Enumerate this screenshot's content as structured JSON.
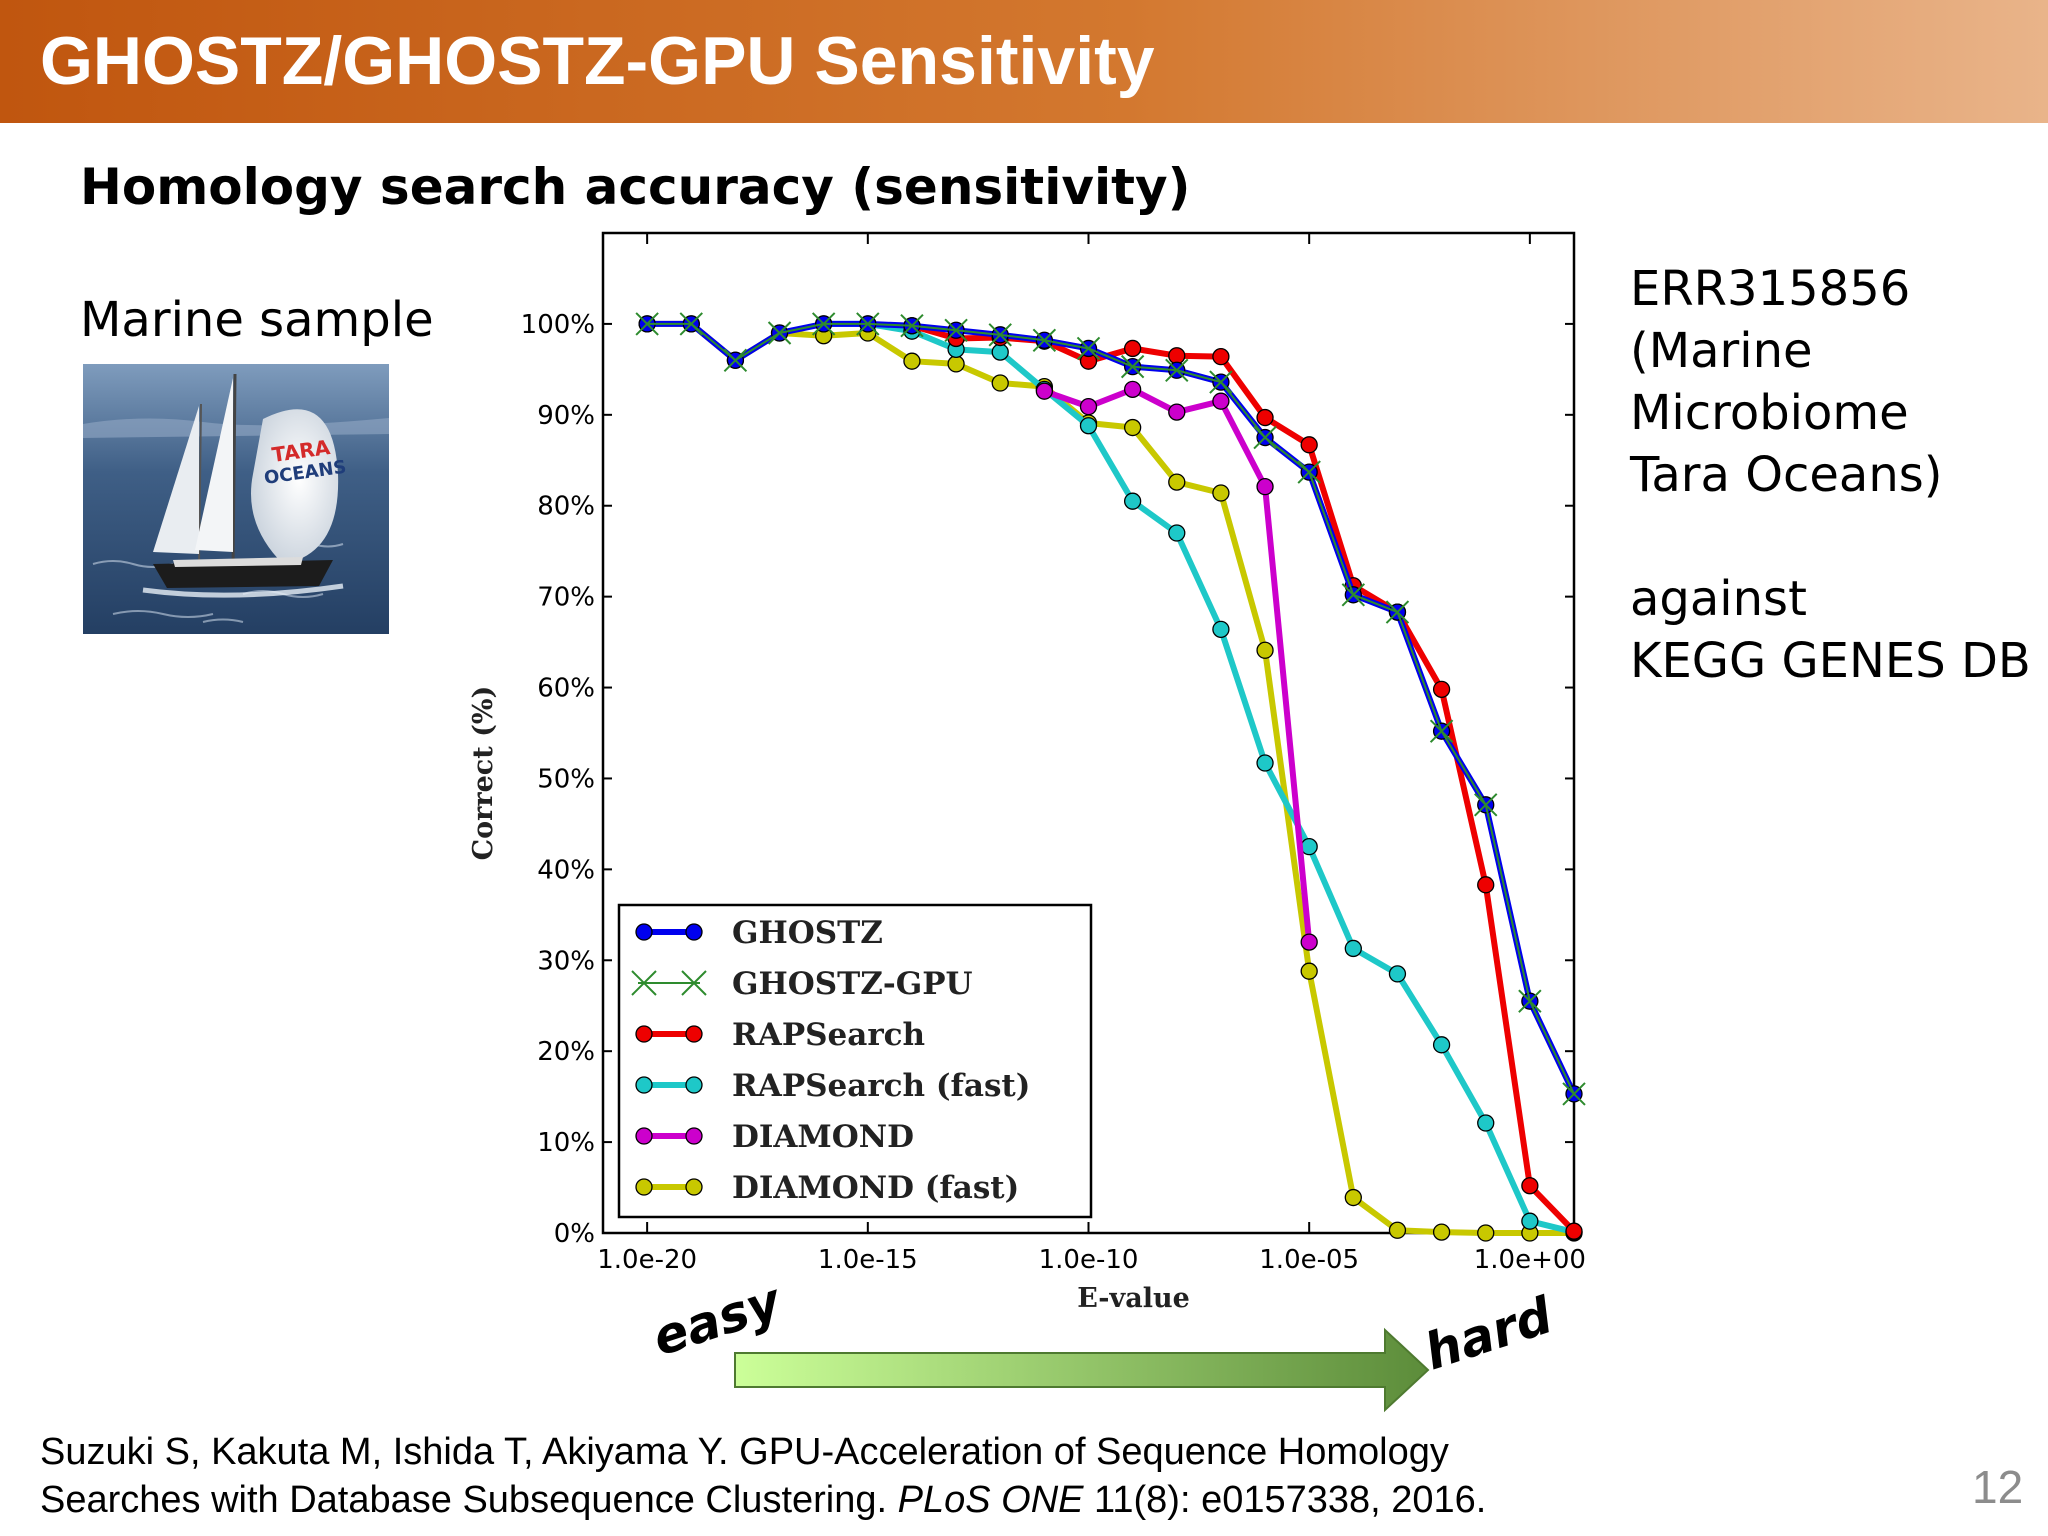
{
  "header": {
    "title": "GHOSTZ/GHOSTZ-GPU Sensitivity"
  },
  "subtitle": "Homology search accuracy (sensitivity)",
  "sample": {
    "label": "Marine sample",
    "photo_text_1": "TARA",
    "photo_text_2": "OCEANS"
  },
  "side_note": {
    "lines": [
      "ERR315856",
      "(Marine",
      "Microbiome",
      "Tara Oceans)",
      "",
      "against",
      "KEGG GENES DB"
    ]
  },
  "difficulty": {
    "easy": "easy",
    "hard": "hard",
    "arrow_start": "#ccff99",
    "arrow_end": "#5c8c3a"
  },
  "citation": {
    "line1": "Suzuki S, Kakuta M, Ishida T, Akiyama Y. GPU-Acceleration of Sequence Homology",
    "line2_pre": "Searches with Database Subsequence Clustering. ",
    "line2_journal": "PLoS ONE",
    "line2_post": " 11(8): e0157338, 2016."
  },
  "page_number": "12",
  "chart_data": {
    "type": "line",
    "title": "",
    "xlabel": "E-value",
    "ylabel": "Correct (%)",
    "x_scale": "log",
    "x_tick_labels": [
      "1.0e-20",
      "1.0e-15",
      "1.0e-10",
      "1.0e-05",
      "1.0e+00"
    ],
    "x_tick_values": [
      1e-20,
      1e-15,
      1e-10,
      1e-05,
      1
    ],
    "xlim": [
      1e-21,
      10.0
    ],
    "ylim": [
      0,
      110
    ],
    "y_ticks": [
      0,
      10,
      20,
      30,
      40,
      50,
      60,
      70,
      80,
      90,
      100
    ],
    "y_tick_labels": [
      "0%",
      "10%",
      "20%",
      "30%",
      "40%",
      "50%",
      "60%",
      "70%",
      "80%",
      "90%",
      "100%"
    ],
    "grid": false,
    "legend_position": "lower-left",
    "x": [
      1e-20,
      1e-19,
      1e-18,
      1e-17,
      1e-16,
      1e-15,
      1e-14,
      1e-13,
      1e-12,
      1e-11,
      1e-10,
      1e-09,
      1e-08,
      1e-07,
      1e-06,
      1e-05,
      0.0001,
      0.001,
      0.01,
      0.1,
      1,
      10
    ],
    "series": [
      {
        "name": "GHOSTZ",
        "color": "#0000ee",
        "marker": "circle",
        "values": [
          100,
          100,
          96,
          99,
          100,
          100,
          99.8,
          99.3,
          98.8,
          98.2,
          97.3,
          95.3,
          94.9,
          93.6,
          87.5,
          83.7,
          70.2,
          68.3,
          55.2,
          47.1,
          25.5,
          15.3
        ]
      },
      {
        "name": "GHOSTZ-GPU",
        "color": "#2e8b2e",
        "marker": "x",
        "values": [
          100,
          100,
          96,
          99,
          100,
          100,
          99.8,
          99.3,
          98.8,
          98.2,
          97.3,
          95.3,
          94.9,
          93.6,
          87.5,
          83.7,
          70.2,
          68.3,
          55.2,
          47.1,
          25.5,
          15.3
        ]
      },
      {
        "name": "RAPSearch",
        "color": "#ee0000",
        "marker": "circle",
        "values": [
          null,
          null,
          null,
          null,
          null,
          null,
          99.8,
          98.4,
          98.5,
          98.1,
          95.9,
          97.3,
          96.5,
          96.4,
          89.7,
          86.7,
          71.2,
          68.3,
          59.8,
          38.3,
          5.2,
          0.2
        ]
      },
      {
        "name": "RAPSearch (fast)",
        "color": "#1ec8c8",
        "marker": "circle",
        "values": [
          null,
          null,
          null,
          null,
          100,
          100,
          99.2,
          97.2,
          96.9,
          92.8,
          88.8,
          80.5,
          77.0,
          66.4,
          51.7,
          42.5,
          31.3,
          28.5,
          20.7,
          12.1,
          1.3,
          0.1
        ]
      },
      {
        "name": "DIAMOND",
        "color": "#cc00cc",
        "marker": "circle",
        "values": [
          null,
          null,
          null,
          null,
          null,
          null,
          null,
          null,
          null,
          92.6,
          90.9,
          92.8,
          90.3,
          91.5,
          82.1,
          32.0,
          null,
          null,
          null,
          null,
          null,
          null
        ]
      },
      {
        "name": "DIAMOND (fast)",
        "color": "#c8c800",
        "marker": "circle",
        "values": [
          100,
          100,
          96,
          99,
          98.7,
          99,
          95.9,
          95.6,
          93.5,
          93.1,
          89.1,
          88.6,
          82.6,
          81.4,
          64.1,
          28.8,
          3.9,
          0.3,
          0.1,
          0,
          0,
          0
        ]
      }
    ]
  }
}
